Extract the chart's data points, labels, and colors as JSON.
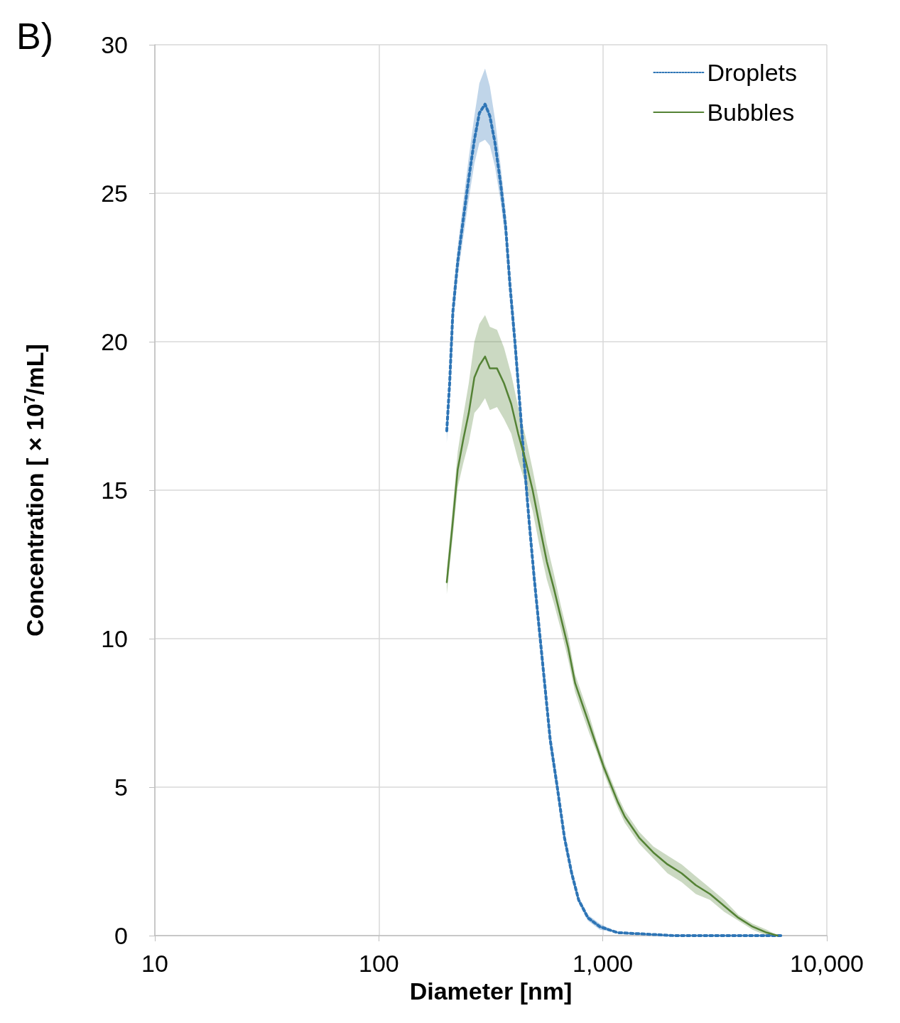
{
  "chart_data": {
    "type": "line",
    "title": "B)",
    "xlabel": "Diameter [nm]",
    "ylabel": "Concentration [ × 10$^{7}$/mL]",
    "log": "x",
    "xlim": [
      10,
      10000
    ],
    "xticks": [
      10,
      100,
      {
        "value": 1000,
        "label": "1,000"
      },
      {
        "value": 10000,
        "label": "10,000"
      }
    ],
    "ylim": [
      0,
      30
    ],
    "yticks": [
      0,
      5,
      10,
      15,
      20,
      25,
      30
    ],
    "grid": true,
    "legend": "top right",
    "marker": "none",
    "series": [
      {
        "name": "Droplets",
        "color": "#2e75b6",
        "line_style": "dotted",
        "x": [
          201,
          207,
          214,
          225,
          238,
          252,
          267,
          281,
          298,
          313,
          330,
          350,
          368,
          385,
          405,
          426,
          445,
          468,
          493,
          522,
          553,
          582,
          626,
          674,
          726,
          780,
          858,
          970,
          1166,
          2089,
          6250
        ],
        "values": [
          17.0,
          18.6,
          21.0,
          22.7,
          24.1,
          25.5,
          26.8,
          27.7,
          28.0,
          27.6,
          26.7,
          25.3,
          23.9,
          21.9,
          20.0,
          17.9,
          16.0,
          14.0,
          12.1,
          10.2,
          8.3,
          6.6,
          5.0,
          3.3,
          2.1,
          1.2,
          0.6,
          0.3,
          0.1,
          0.0,
          0.0
        ],
        "lower": [
          16.6,
          18.2,
          20.5,
          22.2,
          23.5,
          24.8,
          26.0,
          26.7,
          26.8,
          26.6,
          25.9,
          24.7,
          23.4,
          21.4,
          19.5,
          17.4,
          15.6,
          13.6,
          11.7,
          9.8,
          7.9,
          6.3,
          4.7,
          3.1,
          1.9,
          1.1,
          0.5,
          0.2,
          0.1,
          0.0,
          0.0
        ],
        "upper": [
          17.4,
          19.0,
          21.5,
          23.2,
          24.7,
          26.2,
          27.6,
          28.7,
          29.2,
          28.6,
          27.5,
          25.9,
          24.4,
          22.4,
          20.5,
          18.4,
          16.4,
          14.4,
          12.5,
          10.6,
          8.7,
          6.9,
          5.3,
          3.5,
          2.3,
          1.3,
          0.7,
          0.4,
          0.1,
          0.0,
          0.0
        ]
      },
      {
        "name": "Bubbles",
        "color": "#548235",
        "line_style": "solid",
        "x": [
          201,
          213,
          225,
          238,
          252,
          267,
          281,
          298,
          313,
          337,
          362,
          390,
          419,
          452,
          486,
          522,
          562,
          604,
          650,
          700,
          752,
          809,
          871,
          936,
          1007,
          1083,
          1166,
          1254,
          1452,
          1680,
          1943,
          2248,
          2601,
          3010,
          3482,
          4029,
          4663,
          5395,
          6026
        ],
        "values": [
          11.9,
          13.8,
          15.7,
          16.7,
          17.6,
          18.8,
          19.2,
          19.5,
          19.1,
          19.1,
          18.6,
          17.9,
          16.9,
          16.0,
          15.0,
          13.8,
          12.6,
          11.7,
          10.7,
          9.7,
          8.5,
          7.8,
          7.1,
          6.4,
          5.7,
          5.1,
          4.5,
          4.0,
          3.3,
          2.8,
          2.4,
          2.1,
          1.7,
          1.4,
          1.0,
          0.6,
          0.3,
          0.1,
          0.0
        ],
        "lower": [
          11.5,
          13.3,
          15.1,
          15.9,
          16.6,
          17.6,
          17.8,
          18.1,
          17.7,
          17.8,
          17.4,
          16.9,
          16.0,
          15.2,
          14.3,
          13.1,
          12.0,
          11.2,
          10.3,
          9.3,
          8.2,
          7.5,
          6.8,
          6.2,
          5.5,
          4.9,
          4.3,
          3.8,
          3.1,
          2.6,
          2.1,
          1.8,
          1.4,
          1.2,
          0.8,
          0.5,
          0.2,
          0.0,
          0.0
        ],
        "upper": [
          12.3,
          14.3,
          16.3,
          17.5,
          18.6,
          20.0,
          20.6,
          20.9,
          20.5,
          20.4,
          19.8,
          18.9,
          17.8,
          16.8,
          15.7,
          14.5,
          13.2,
          12.2,
          11.1,
          10.1,
          8.8,
          8.1,
          7.4,
          6.6,
          5.9,
          5.3,
          4.7,
          4.2,
          3.5,
          3.0,
          2.7,
          2.4,
          2.0,
          1.6,
          1.2,
          0.7,
          0.4,
          0.2,
          0.0
        ]
      }
    ]
  }
}
